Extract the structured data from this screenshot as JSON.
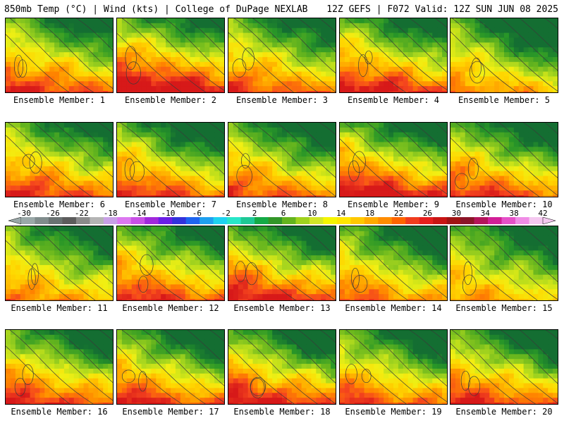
{
  "header": {
    "left": "850mb Temp (°C) | Wind (kts) | College of DuPage NEXLAB",
    "right": "12Z GEFS | F072 Valid: 12Z SUN JUN 08 2025"
  },
  "members": [
    {
      "label": "Ensemble Member: 1",
      "seed": 1,
      "warm": 0.6,
      "cool": 0.45
    },
    {
      "label": "Ensemble Member: 2",
      "seed": 2,
      "warm": 0.75,
      "cool": 0.35
    },
    {
      "label": "Ensemble Member: 3",
      "seed": 3,
      "warm": 0.55,
      "cool": 0.45
    },
    {
      "label": "Ensemble Member: 4",
      "seed": 4,
      "warm": 0.65,
      "cool": 0.45
    },
    {
      "label": "Ensemble Member: 5",
      "seed": 5,
      "warm": 0.45,
      "cool": 0.7
    },
    {
      "label": "Ensemble Member: 6",
      "seed": 6,
      "warm": 0.6,
      "cool": 0.4
    },
    {
      "label": "Ensemble Member: 7",
      "seed": 7,
      "warm": 0.6,
      "cool": 0.6
    },
    {
      "label": "Ensemble Member: 8",
      "seed": 8,
      "warm": 0.55,
      "cool": 0.55
    },
    {
      "label": "Ensemble Member: 9",
      "seed": 9,
      "warm": 0.7,
      "cool": 0.5
    },
    {
      "label": "Ensemble Member: 10",
      "seed": 10,
      "warm": 0.6,
      "cool": 0.55
    },
    {
      "label": "Ensemble Member: 11",
      "seed": 11,
      "warm": 0.45,
      "cool": 0.45
    },
    {
      "label": "Ensemble Member: 12",
      "seed": 12,
      "warm": 0.6,
      "cool": 0.45
    },
    {
      "label": "Ensemble Member: 13",
      "seed": 13,
      "warm": 0.65,
      "cool": 0.55
    },
    {
      "label": "Ensemble Member: 14",
      "seed": 14,
      "warm": 0.5,
      "cool": 0.6
    },
    {
      "label": "Ensemble Member: 15",
      "seed": 15,
      "warm": 0.4,
      "cool": 0.5
    },
    {
      "label": "Ensemble Member: 16",
      "seed": 16,
      "warm": 0.6,
      "cool": 0.5
    },
    {
      "label": "Ensemble Member: 17",
      "seed": 17,
      "warm": 0.6,
      "cool": 0.6
    },
    {
      "label": "Ensemble Member: 18",
      "seed": 18,
      "warm": 0.65,
      "cool": 0.6
    },
    {
      "label": "Ensemble Member: 19",
      "seed": 19,
      "warm": 0.55,
      "cool": 0.55
    },
    {
      "label": "Ensemble Member: 20",
      "seed": 20,
      "warm": 0.6,
      "cool": 0.55
    }
  ],
  "colorbar": {
    "ticks": [
      "-30",
      "-26",
      "-22",
      "-18",
      "-14",
      "-10",
      "-6",
      "-2",
      "2",
      "6",
      "10",
      "14",
      "18",
      "22",
      "26",
      "30",
      "34",
      "38",
      "42"
    ],
    "colors": [
      "#9aa8a8",
      "#808c8c",
      "#6a7272",
      "#5c5c5c",
      "#8a8a8a",
      "#b4b4b4",
      "#c8a0e6",
      "#dc78f0",
      "#c850e6",
      "#a028dc",
      "#6a1ee6",
      "#3232dc",
      "#1e64f0",
      "#1ea0f0",
      "#1ed2f0",
      "#28e6c8",
      "#1ec896",
      "#14aa46",
      "#329628",
      "#64b41e",
      "#a0d21e",
      "#d2e628",
      "#f5f500",
      "#ffe600",
      "#ffc800",
      "#ffaa00",
      "#ff8c00",
      "#ff6400",
      "#f03c1e",
      "#e61e1e",
      "#c81414",
      "#a01414",
      "#8c1428",
      "#b4145a",
      "#d21e96",
      "#e650c8",
      "#f08ce6",
      "#f5c8f0"
    ]
  }
}
